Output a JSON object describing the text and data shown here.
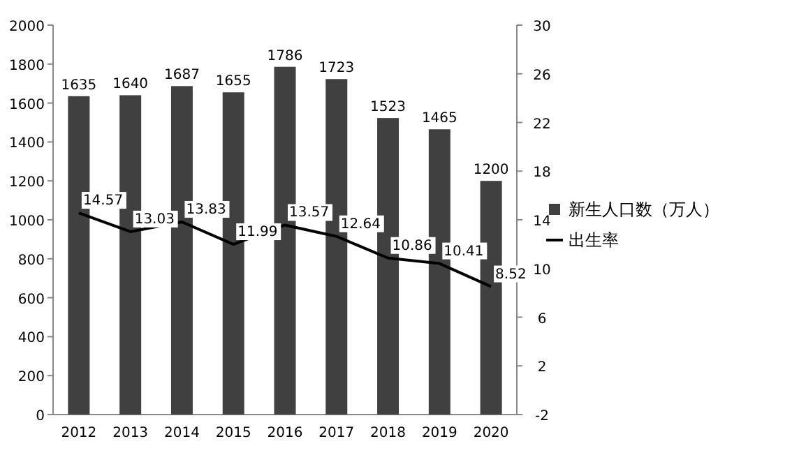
{
  "chart_data": {
    "type": "bar",
    "categories": [
      "2012",
      "2013",
      "2014",
      "2015",
      "2016",
      "2017",
      "2018",
      "2019",
      "2020"
    ],
    "series": [
      {
        "name": "新生人口数（万人）",
        "color": "#404040",
        "values": [
          1635,
          1640,
          1687,
          1655,
          1786,
          1723,
          1523,
          1465,
          1200
        ]
      },
      {
        "name": "出生率",
        "type": "line",
        "axis": "y2",
        "color": "#000000",
        "values": [
          14.57,
          13.03,
          13.83,
          11.99,
          13.57,
          12.64,
          10.86,
          10.41,
          8.52
        ]
      }
    ],
    "ylim": [
      0,
      2000
    ],
    "yticks": [
      0,
      200,
      400,
      600,
      800,
      1000,
      1200,
      1400,
      1600,
      1800,
      2000
    ],
    "y2lim": [
      -2,
      30
    ],
    "y2ticks": [
      -2,
      2,
      6,
      10,
      14,
      18,
      22,
      26,
      30
    ],
    "data_labels": true,
    "legend": "right"
  }
}
